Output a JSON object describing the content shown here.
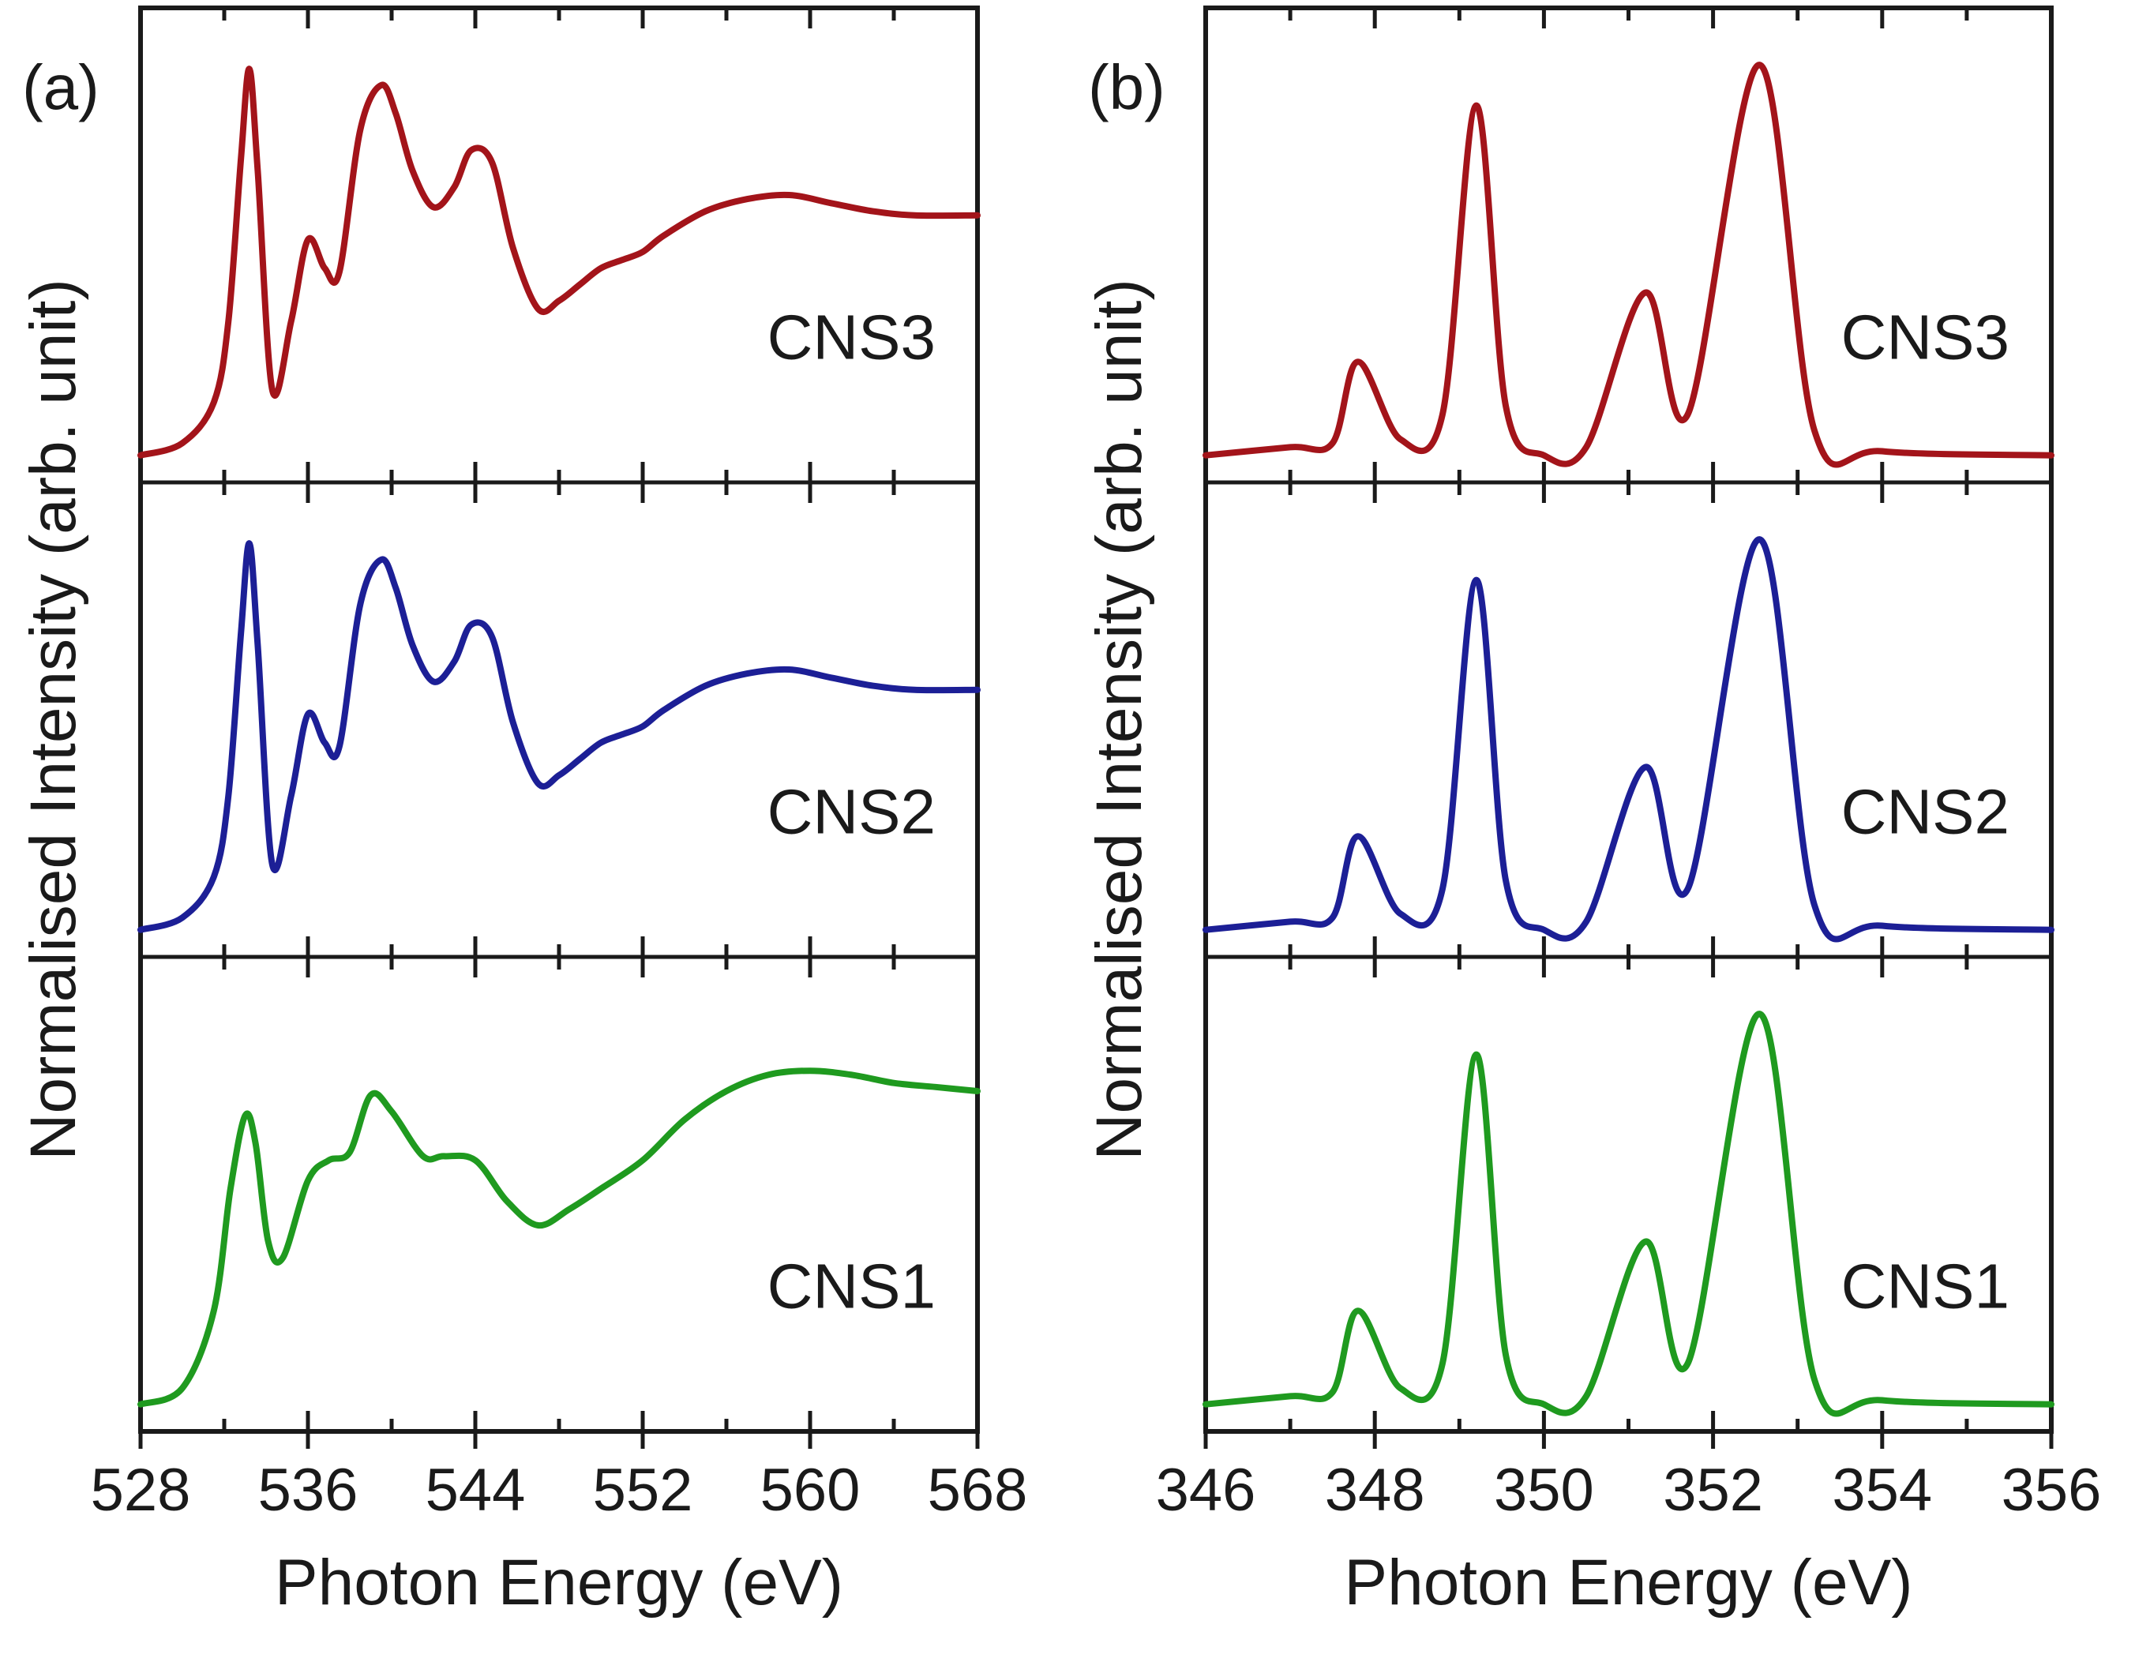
{
  "chart_data": [
    {
      "type": "line",
      "panel_label": "(a)",
      "xlabel": "Photon Energy (eV)",
      "ylabel": "Normalised Intensity (arb. unit)",
      "xlim": [
        528,
        568
      ],
      "xticks": [
        528,
        536,
        544,
        552,
        560,
        568
      ],
      "minor_step": 4,
      "stacked_panels": true,
      "ylim": [
        0,
        1.05
      ],
      "series": [
        {
          "name": "CNS3",
          "color": "#a3141a",
          "x": [
            528,
            530,
            531.5,
            532.2,
            532.8,
            533.2,
            533.6,
            534.3,
            535.2,
            536.0,
            536.8,
            537.5,
            538.5,
            539.5,
            540.2,
            541.0,
            542.0,
            543.0,
            543.8,
            544.8,
            545.8,
            547.0,
            548.0,
            549.0,
            550.0,
            551.0,
            552.0,
            553.0,
            555.0,
            557.0,
            559.0,
            561.0,
            563.0,
            565.0,
            568.0
          ],
          "y": [
            0.02,
            0.05,
            0.15,
            0.35,
            0.75,
            0.97,
            0.72,
            0.18,
            0.35,
            0.55,
            0.48,
            0.47,
            0.82,
            0.93,
            0.86,
            0.72,
            0.63,
            0.68,
            0.77,
            0.74,
            0.53,
            0.38,
            0.4,
            0.44,
            0.48,
            0.5,
            0.52,
            0.56,
            0.62,
            0.65,
            0.66,
            0.64,
            0.62,
            0.61,
            0.61
          ]
        },
        {
          "name": "CNS2",
          "color": "#1c1f96",
          "x": [
            528,
            530,
            531.5,
            532.2,
            532.8,
            533.2,
            533.6,
            534.3,
            535.2,
            536.0,
            536.8,
            537.5,
            538.5,
            539.5,
            540.2,
            541.0,
            542.0,
            543.0,
            543.8,
            544.8,
            545.8,
            547.0,
            548.0,
            549.0,
            550.0,
            551.0,
            552.0,
            553.0,
            555.0,
            557.0,
            559.0,
            561.0,
            563.0,
            565.0,
            568.0
          ],
          "y": [
            0.02,
            0.05,
            0.15,
            0.35,
            0.75,
            0.97,
            0.72,
            0.18,
            0.35,
            0.55,
            0.48,
            0.47,
            0.82,
            0.93,
            0.86,
            0.72,
            0.63,
            0.68,
            0.77,
            0.74,
            0.53,
            0.38,
            0.4,
            0.44,
            0.48,
            0.5,
            0.52,
            0.56,
            0.62,
            0.65,
            0.66,
            0.64,
            0.62,
            0.61,
            0.61
          ]
        },
        {
          "name": "CNS1",
          "color": "#1f9a1f",
          "x": [
            528,
            530,
            531.5,
            532.3,
            533.0,
            533.5,
            534.1,
            534.8,
            536.0,
            537.0,
            538.0,
            539.0,
            540.0,
            541.5,
            542.5,
            544.0,
            545.5,
            547.0,
            548.5,
            550.0,
            552.0,
            554.0,
            556.0,
            558.0,
            560.0,
            562.0,
            564.0,
            566.0,
            568.0
          ],
          "y": [
            0.02,
            0.06,
            0.25,
            0.55,
            0.73,
            0.66,
            0.42,
            0.38,
            0.57,
            0.62,
            0.64,
            0.78,
            0.74,
            0.63,
            0.63,
            0.62,
            0.52,
            0.46,
            0.5,
            0.55,
            0.62,
            0.72,
            0.79,
            0.83,
            0.84,
            0.83,
            0.81,
            0.8,
            0.79
          ]
        }
      ]
    },
    {
      "type": "line",
      "panel_label": "(b)",
      "xlabel": "Photon Energy (eV)",
      "ylabel": "Normalised Intensity (arb. unit)",
      "xlim": [
        346,
        356
      ],
      "xticks": [
        346,
        348,
        350,
        352,
        354,
        356
      ],
      "minor_step": 1,
      "stacked_panels": true,
      "ylim": [
        0,
        1.05
      ],
      "series": [
        {
          "name": "CNS3",
          "color": "#a3141a",
          "x": [
            346,
            347,
            347.5,
            347.8,
            348.3,
            348.8,
            349.2,
            349.55,
            350.0,
            350.5,
            351.2,
            351.7,
            352.55,
            353.2,
            354.0,
            356.0
          ],
          "y": [
            0.02,
            0.04,
            0.05,
            0.25,
            0.06,
            0.12,
            0.88,
            0.14,
            0.02,
            0.04,
            0.42,
            0.12,
            0.98,
            0.08,
            0.03,
            0.02
          ]
        },
        {
          "name": "CNS2",
          "color": "#1c1f96",
          "x": [
            346,
            347,
            347.5,
            347.8,
            348.3,
            348.8,
            349.2,
            349.55,
            350.0,
            350.5,
            351.2,
            351.7,
            352.55,
            353.2,
            354.0,
            356.0
          ],
          "y": [
            0.02,
            0.04,
            0.05,
            0.25,
            0.06,
            0.12,
            0.88,
            0.14,
            0.02,
            0.04,
            0.42,
            0.12,
            0.98,
            0.08,
            0.03,
            0.02
          ]
        },
        {
          "name": "CNS1",
          "color": "#1f9a1f",
          "x": [
            346,
            347,
            347.5,
            347.8,
            348.3,
            348.8,
            349.2,
            349.55,
            350.0,
            350.5,
            351.2,
            351.7,
            352.55,
            353.2,
            354.0,
            356.0
          ],
          "y": [
            0.02,
            0.04,
            0.05,
            0.25,
            0.06,
            0.12,
            0.88,
            0.14,
            0.02,
            0.04,
            0.42,
            0.12,
            0.98,
            0.08,
            0.03,
            0.02
          ]
        }
      ]
    }
  ]
}
